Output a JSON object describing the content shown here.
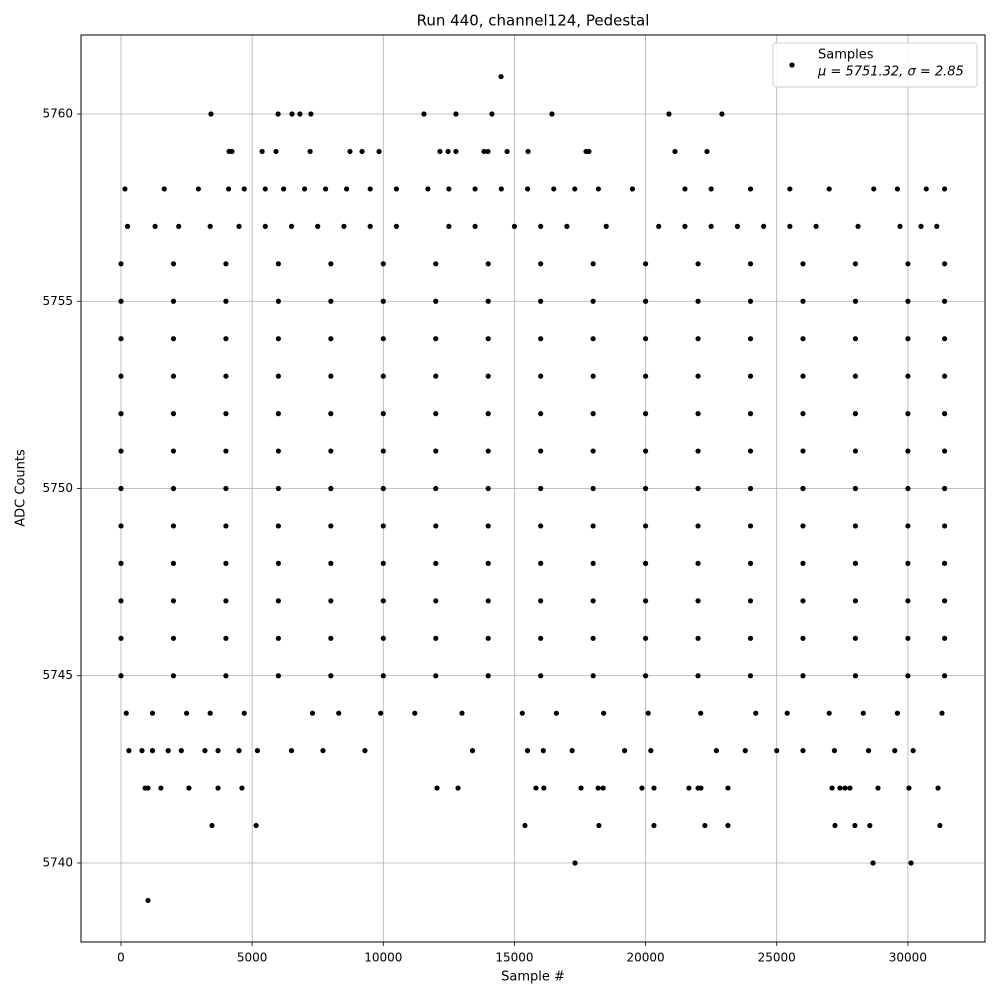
{
  "chart_data": {
    "type": "scatter",
    "title": "Run 440, channel124, Pedestal",
    "xlabel": "Sample #",
    "ylabel": "ADC Counts",
    "xlim": [
      -1525,
      32940
    ],
    "ylim": [
      5737.89,
      5762.11
    ],
    "xticks": [
      0,
      5000,
      10000,
      15000,
      20000,
      25000,
      30000
    ],
    "yticks": [
      5740,
      5745,
      5750,
      5755,
      5760
    ],
    "grid": true,
    "legend_loc": "upper right",
    "legend_note": "μ = 5751.32, σ = 2.85",
    "series": [
      {
        "name": "Samples",
        "color": "#000000",
        "x": [
          14490,
          3430,
          5990,
          6520,
          6820,
          7240,
          11550,
          12770,
          14140,
          16430,
          20890,
          22910,
          4120,
          4230,
          5380,
          5910,
          7210,
          8730,
          9190,
          9840,
          12160,
          12470,
          12770,
          13840,
          13990,
          14720,
          15520,
          17730,
          17840,
          21120,
          22340,
          150,
          1650,
          2950,
          4100,
          4700,
          5500,
          6200,
          7000,
          7800,
          8600,
          9500,
          10500,
          11700,
          12500,
          13500,
          14500,
          15500,
          16500,
          17300,
          18200,
          19500,
          21500,
          22500,
          24000,
          25500,
          27000,
          28700,
          29600,
          30700,
          31400,
          250,
          1300,
          2200,
          3400,
          4500,
          5500,
          6500,
          7500,
          8500,
          9500,
          10500,
          12500,
          13500,
          15000,
          16000,
          17000,
          18500,
          20500,
          21500,
          22500,
          23500,
          24500,
          25500,
          26500,
          28100,
          29700,
          30500,
          31100,
          0,
          2000,
          4000,
          6000,
          8000,
          10000,
          12000,
          14000,
          16000,
          18000,
          20000,
          22000,
          24000,
          26000,
          28000,
          30000,
          31400,
          0,
          2000,
          4000,
          6000,
          8000,
          10000,
          12000,
          14000,
          16000,
          18000,
          20000,
          22000,
          24000,
          26000,
          28000,
          30000,
          31400,
          0,
          2000,
          4000,
          6000,
          8000,
          10000,
          12000,
          14000,
          16000,
          18000,
          20000,
          22000,
          24000,
          26000,
          28000,
          30000,
          31400,
          0,
          2000,
          4000,
          6000,
          8000,
          10000,
          12000,
          14000,
          16000,
          18000,
          20000,
          22000,
          24000,
          26000,
          28000,
          30000,
          31400,
          0,
          2000,
          4000,
          6000,
          8000,
          10000,
          12000,
          14000,
          16000,
          18000,
          20000,
          22000,
          24000,
          26000,
          28000,
          30000,
          31400,
          0,
          2000,
          4000,
          6000,
          8000,
          10000,
          12000,
          14000,
          16000,
          18000,
          20000,
          22000,
          24000,
          26000,
          28000,
          30000,
          31400,
          0,
          2000,
          4000,
          6000,
          8000,
          10000,
          12000,
          14000,
          16000,
          18000,
          20000,
          22000,
          24000,
          26000,
          28000,
          30000,
          31400,
          0,
          2000,
          4000,
          6000,
          8000,
          10000,
          12000,
          14000,
          16000,
          18000,
          20000,
          22000,
          24000,
          26000,
          28000,
          30000,
          31400,
          0,
          2000,
          4000,
          6000,
          8000,
          10000,
          12000,
          14000,
          16000,
          18000,
          20000,
          22000,
          24000,
          26000,
          28000,
          30000,
          31400,
          0,
          2000,
          4000,
          6000,
          8000,
          10000,
          12000,
          14000,
          16000,
          18000,
          20000,
          22000,
          24000,
          26000,
          28000,
          30000,
          31400,
          0,
          2000,
          4000,
          6000,
          8000,
          10000,
          12000,
          14000,
          16000,
          18000,
          20000,
          22000,
          24000,
          26000,
          28000,
          30000,
          31400,
          0,
          2000,
          4000,
          6000,
          8000,
          10000,
          12000,
          14000,
          16000,
          18000,
          20000,
          22000,
          24000,
          26000,
          28000,
          30000,
          31400,
          200,
          1200,
          2500,
          3400,
          4700,
          7300,
          8300,
          9900,
          11200,
          13000,
          15300,
          16600,
          18400,
          20100,
          22100,
          24200,
          25400,
          27000,
          28300,
          29600,
          31300,
          300,
          800,
          1200,
          1800,
          2300,
          3200,
          3700,
          4500,
          5200,
          6500,
          7700,
          9300,
          13400,
          15500,
          16100,
          17200,
          19200,
          20200,
          22700,
          23800,
          25000,
          26000,
          27200,
          28500,
          29500,
          30200,
          920,
          1030,
          1520,
          2590,
          3700,
          4610,
          12050,
          12850,
          15820,
          16120,
          17540,
          18190,
          18380,
          19860,
          20320,
          21650,
          22000,
          22110,
          23140,
          27110,
          27410,
          27600,
          27790,
          28860,
          30040,
          31150,
          3470,
          5150,
          15400,
          18220,
          20320,
          22260,
          23140,
          27220,
          27980,
          28550,
          31220,
          17310,
          28670,
          30120,
          1030
        ],
        "y": [
          5761,
          5760,
          5760,
          5760,
          5760,
          5760,
          5760,
          5760,
          5760,
          5760,
          5760,
          5760,
          5759,
          5759,
          5759,
          5759,
          5759,
          5759,
          5759,
          5759,
          5759,
          5759,
          5759,
          5759,
          5759,
          5759,
          5759,
          5759,
          5759,
          5759,
          5759,
          5758,
          5758,
          5758,
          5758,
          5758,
          5758,
          5758,
          5758,
          5758,
          5758,
          5758,
          5758,
          5758,
          5758,
          5758,
          5758,
          5758,
          5758,
          5758,
          5758,
          5758,
          5758,
          5758,
          5758,
          5758,
          5758,
          5758,
          5758,
          5758,
          5758,
          5757,
          5757,
          5757,
          5757,
          5757,
          5757,
          5757,
          5757,
          5757,
          5757,
          5757,
          5757,
          5757,
          5757,
          5757,
          5757,
          5757,
          5757,
          5757,
          5757,
          5757,
          5757,
          5757,
          5757,
          5757,
          5757,
          5757,
          5757,
          5756,
          5756,
          5756,
          5756,
          5756,
          5756,
          5756,
          5756,
          5756,
          5756,
          5756,
          5756,
          5756,
          5756,
          5756,
          5756,
          5756,
          5755,
          5755,
          5755,
          5755,
          5755,
          5755,
          5755,
          5755,
          5755,
          5755,
          5755,
          5755,
          5755,
          5755,
          5755,
          5755,
          5755,
          5754,
          5754,
          5754,
          5754,
          5754,
          5754,
          5754,
          5754,
          5754,
          5754,
          5754,
          5754,
          5754,
          5754,
          5754,
          5754,
          5754,
          5753,
          5753,
          5753,
          5753,
          5753,
          5753,
          5753,
          5753,
          5753,
          5753,
          5753,
          5753,
          5753,
          5753,
          5753,
          5753,
          5753,
          5752,
          5752,
          5752,
          5752,
          5752,
          5752,
          5752,
          5752,
          5752,
          5752,
          5752,
          5752,
          5752,
          5752,
          5752,
          5752,
          5752,
          5751,
          5751,
          5751,
          5751,
          5751,
          5751,
          5751,
          5751,
          5751,
          5751,
          5751,
          5751,
          5751,
          5751,
          5751,
          5751,
          5751,
          5750,
          5750,
          5750,
          5750,
          5750,
          5750,
          5750,
          5750,
          5750,
          5750,
          5750,
          5750,
          5750,
          5750,
          5750,
          5750,
          5750,
          5749,
          5749,
          5749,
          5749,
          5749,
          5749,
          5749,
          5749,
          5749,
          5749,
          5749,
          5749,
          5749,
          5749,
          5749,
          5749,
          5749,
          5748,
          5748,
          5748,
          5748,
          5748,
          5748,
          5748,
          5748,
          5748,
          5748,
          5748,
          5748,
          5748,
          5748,
          5748,
          5748,
          5748,
          5747,
          5747,
          5747,
          5747,
          5747,
          5747,
          5747,
          5747,
          5747,
          5747,
          5747,
          5747,
          5747,
          5747,
          5747,
          5747,
          5747,
          5746,
          5746,
          5746,
          5746,
          5746,
          5746,
          5746,
          5746,
          5746,
          5746,
          5746,
          5746,
          5746,
          5746,
          5746,
          5746,
          5746,
          5745,
          5745,
          5745,
          5745,
          5745,
          5745,
          5745,
          5745,
          5745,
          5745,
          5745,
          5745,
          5745,
          5745,
          5745,
          5745,
          5745,
          5744,
          5744,
          5744,
          5744,
          5744,
          5744,
          5744,
          5744,
          5744,
          5744,
          5744,
          5744,
          5744,
          5744,
          5744,
          5744,
          5744,
          5744,
          5744,
          5744,
          5744,
          5743,
          5743,
          5743,
          5743,
          5743,
          5743,
          5743,
          5743,
          5743,
          5743,
          5743,
          5743,
          5743,
          5743,
          5743,
          5743,
          5743,
          5743,
          5743,
          5743,
          5743,
          5743,
          5743,
          5743,
          5743,
          5743,
          5742,
          5742,
          5742,
          5742,
          5742,
          5742,
          5742,
          5742,
          5742,
          5742,
          5742,
          5742,
          5742,
          5742,
          5742,
          5742,
          5742,
          5742,
          5742,
          5742,
          5742,
          5742,
          5742,
          5742,
          5742,
          5742,
          5741,
          5741,
          5741,
          5741,
          5741,
          5741,
          5741,
          5741,
          5741,
          5741,
          5741,
          5740,
          5740,
          5740,
          5739
        ]
      }
    ]
  }
}
